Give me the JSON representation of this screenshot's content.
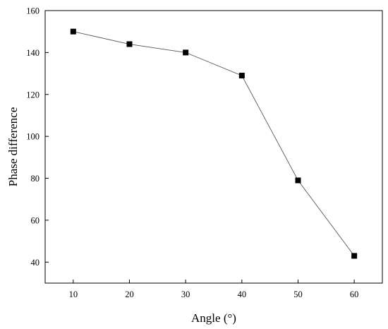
{
  "chart_data": {
    "type": "line",
    "title": "",
    "xlabel": "Angle (°)",
    "ylabel": "Phase difference",
    "xlim": [
      5,
      65
    ],
    "ylim": [
      30,
      160
    ],
    "xticks": [
      10,
      20,
      30,
      40,
      50,
      60
    ],
    "yticks": [
      40,
      60,
      80,
      100,
      120,
      140,
      160
    ],
    "xtick_labels": [
      "10",
      "20",
      "30",
      "40",
      "50",
      "60"
    ],
    "ytick_labels": [
      "40",
      "60",
      "80",
      "100",
      "120",
      "140",
      "160"
    ],
    "grid": false,
    "legend": "none",
    "marker": "square",
    "colors": {
      "line": "#555555",
      "marker": "#000000",
      "axis": "#000000"
    },
    "series": [
      {
        "x": [
          10,
          20,
          30,
          40,
          50,
          60
        ],
        "y": [
          150,
          144,
          140,
          129,
          79,
          43
        ]
      }
    ]
  }
}
